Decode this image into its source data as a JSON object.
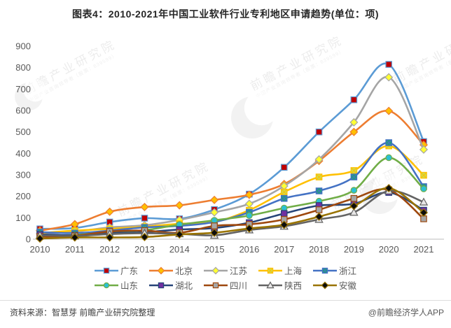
{
  "title": "图表4：2010-2021年中国工业软件行业专利地区申请趋势(单位：项)",
  "footer": {
    "source": "资料来源：智慧芽 前瞻产业研究院整理",
    "credit": "@前瞻经济学人APP"
  },
  "watermark": {
    "text": "前瞻产业研究院",
    "subtext": "中国产业咨询领导者（股票：839599）"
  },
  "chart_data": {
    "type": "line",
    "title": "图表4：2010-2021年中国工业软件行业专利地区申请趋势(单位：项)",
    "x": [
      2010,
      2011,
      2012,
      2013,
      2014,
      2015,
      2016,
      2017,
      2018,
      2019,
      2020,
      2021
    ],
    "xlabel": "",
    "ylabel": "",
    "ylim": [
      0,
      900
    ],
    "ytick_step": 100,
    "grid": false,
    "legend_position": "bottom",
    "line_style": "smooth",
    "series": [
      {
        "name": "广东",
        "color": "#5B9BD5",
        "marker": "square",
        "marker_fill": "#C00000",
        "values": [
          48,
          52,
          80,
          98,
          95,
          138,
          210,
          335,
          500,
          650,
          815,
          455
        ]
      },
      {
        "name": "北京",
        "color": "#ED7D31",
        "marker": "diamond",
        "marker_fill": "#FFC000",
        "values": [
          40,
          70,
          128,
          150,
          158,
          183,
          207,
          257,
          365,
          500,
          598,
          440
        ]
      },
      {
        "name": "江苏",
        "color": "#A5A5A5",
        "marker": "diamond",
        "marker_fill": "#FFFF33",
        "values": [
          25,
          35,
          55,
          65,
          90,
          125,
          165,
          248,
          372,
          545,
          755,
          418
        ]
      },
      {
        "name": "上海",
        "color": "#FFC000",
        "marker": "xsquare",
        "marker_fill": "#CCDB50",
        "values": [
          28,
          40,
          48,
          58,
          72,
          80,
          135,
          220,
          290,
          320,
          435,
          298
        ]
      },
      {
        "name": "浙江",
        "color": "#4472C4",
        "marker": "xsquare",
        "marker_fill": "#1FA179",
        "values": [
          33,
          28,
          40,
          55,
          62,
          80,
          125,
          190,
          225,
          290,
          450,
          245
        ]
      },
      {
        "name": "山东",
        "color": "#70AD47",
        "marker": "circle",
        "marker_fill": "#2BC0D4",
        "values": [
          15,
          20,
          33,
          42,
          68,
          88,
          110,
          145,
          177,
          228,
          380,
          235
        ]
      },
      {
        "name": "湖北",
        "color": "#264478",
        "marker": "square",
        "marker_fill": "#7030A0",
        "values": [
          22,
          18,
          28,
          33,
          45,
          52,
          77,
          120,
          157,
          165,
          218,
          135
        ]
      },
      {
        "name": "四川",
        "color": "#9E480E",
        "marker": "square",
        "marker_fill": "#A6A6A6",
        "values": [
          12,
          16,
          36,
          40,
          30,
          62,
          69,
          92,
          137,
          190,
          230,
          95
        ]
      },
      {
        "name": "陕西",
        "color": "#636363",
        "marker": "triangle",
        "marker_fill": "#E7E6E6",
        "values": [
          18,
          15,
          24,
          28,
          25,
          18,
          43,
          60,
          92,
          125,
          225,
          173
        ]
      },
      {
        "name": "安徽",
        "color": "#997300",
        "marker": "diamond",
        "marker_fill": "#0D0D0D",
        "values": [
          3,
          8,
          8,
          10,
          22,
          30,
          50,
          67,
          105,
          155,
          238,
          124
        ]
      }
    ],
    "legend_rows": [
      [
        "广东",
        "北京",
        "江苏",
        "上海",
        "浙江"
      ],
      [
        "山东",
        "湖北",
        "四川",
        "陕西",
        "安徽"
      ]
    ]
  }
}
